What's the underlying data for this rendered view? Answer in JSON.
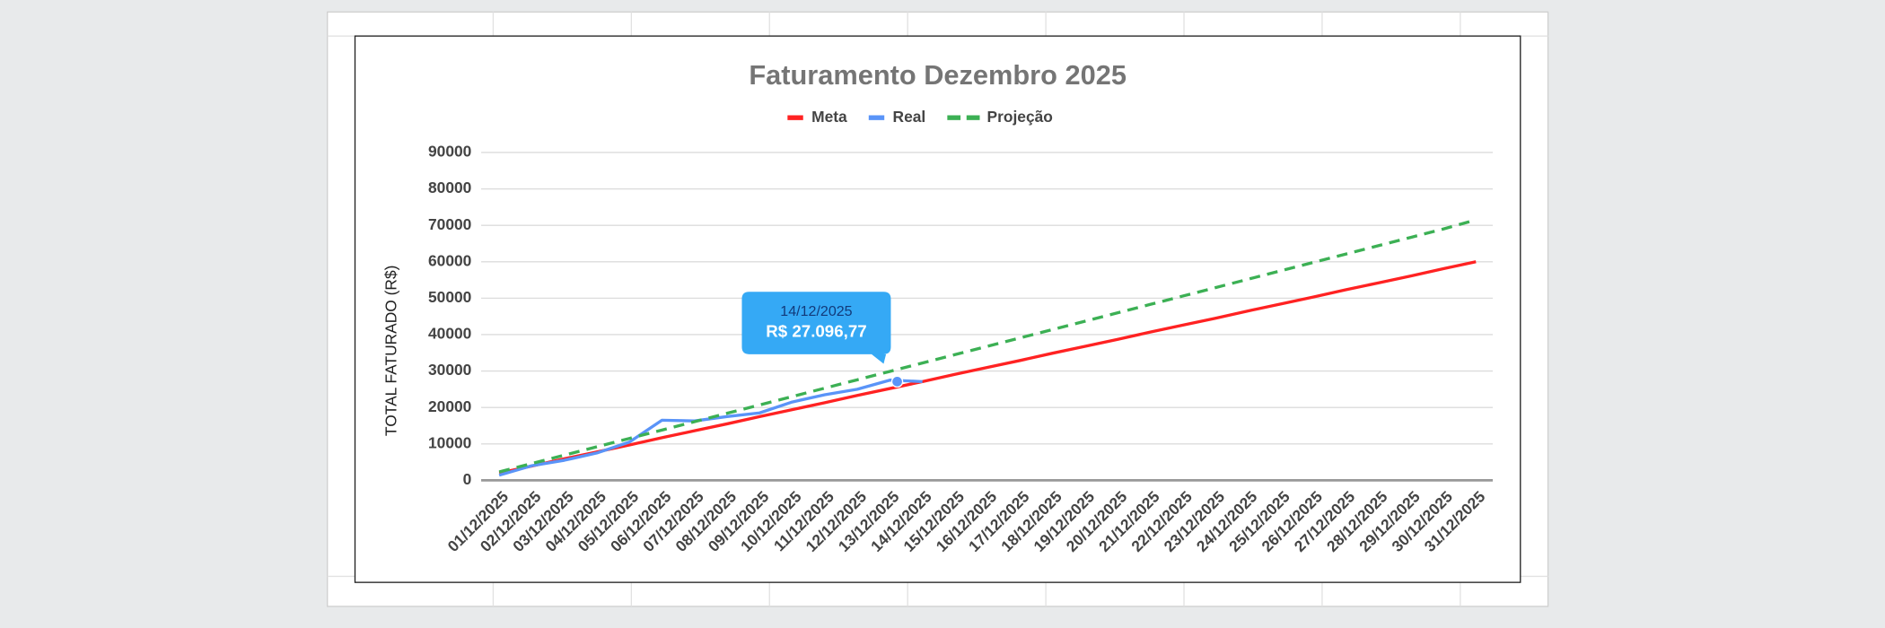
{
  "chart_data": {
    "type": "line",
    "title": "Faturamento Dezembro 2025",
    "y_label": "TOTAL FATURADO (R$)",
    "categories": [
      "01/12/2025",
      "02/12/2025",
      "03/12/2025",
      "04/12/2025",
      "05/12/2025",
      "06/12/2025",
      "07/12/2025",
      "08/12/2025",
      "09/12/2025",
      "10/12/2025",
      "11/12/2025",
      "12/12/2025",
      "13/12/2025",
      "14/12/2025",
      "15/12/2025",
      "16/12/2025",
      "17/12/2025",
      "18/12/2025",
      "19/12/2025",
      "20/12/2025",
      "21/12/2025",
      "22/12/2025",
      "23/12/2025",
      "24/12/2025",
      "25/12/2025",
      "26/12/2025",
      "27/12/2025",
      "28/12/2025",
      "29/12/2025",
      "30/12/2025",
      "31/12/2025"
    ],
    "series": [
      {
        "name": "Meta",
        "color": "#ff2222",
        "dashed": false,
        "values": [
          2000,
          3900,
          5900,
          7800,
          9700,
          11700,
          13600,
          15500,
          17500,
          19400,
          21300,
          23300,
          25200,
          27100,
          29100,
          31000,
          32900,
          34900,
          36800,
          38700,
          40700,
          42600,
          44500,
          46500,
          48400,
          50300,
          52300,
          54200,
          56100,
          58100,
          60000
        ]
      },
      {
        "name": "Real",
        "color": "#5a94f8",
        "dashed": false,
        "values": [
          1400,
          4000,
          5500,
          7500,
          10500,
          16500,
          16300,
          17500,
          18500,
          21500,
          23500,
          25000,
          27500,
          27096.77,
          null,
          null,
          null,
          null,
          null,
          null,
          null,
          null,
          null,
          null,
          null,
          null,
          null,
          null,
          null,
          null,
          null
        ]
      },
      {
        "name": "Projeção",
        "color": "#3cb054",
        "dashed": true,
        "values": [
          2300,
          4600,
          6900,
          9200,
          11500,
          13800,
          16100,
          18400,
          20700,
          23000,
          25300,
          27600,
          29900,
          32200,
          34500,
          36800,
          39100,
          41400,
          43700,
          46000,
          48300,
          50600,
          52900,
          55200,
          57500,
          59800,
          62100,
          64400,
          66700,
          69000,
          71500
        ]
      }
    ],
    "ylim": [
      0,
      90000
    ],
    "yticks": [
      0,
      10000,
      20000,
      30000,
      40000,
      50000,
      60000,
      70000,
      80000,
      90000
    ],
    "grid": true,
    "legend": "top",
    "tooltip": {
      "series": 1,
      "index": 13,
      "label": "14/12/2025",
      "value_label": "R$ 27.096,77"
    }
  }
}
